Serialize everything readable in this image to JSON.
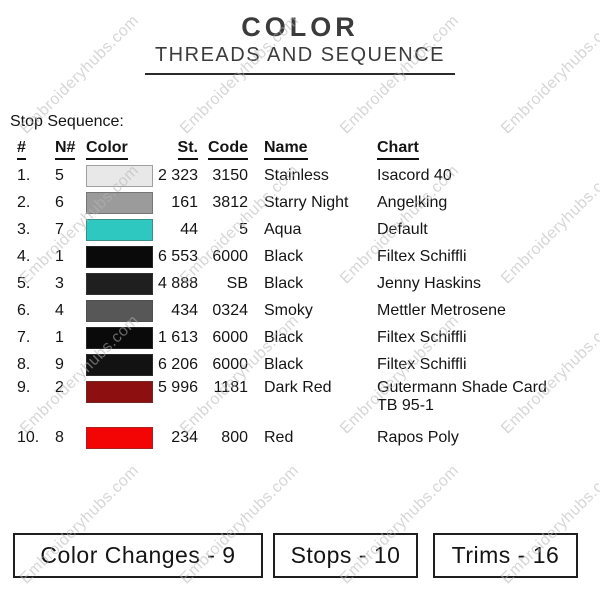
{
  "watermark": {
    "text": "Embroideryhubs.com"
  },
  "header": {
    "title": "COLOR",
    "subtitle": "THREADS AND SEQUENCE"
  },
  "stop_sequence_label": "Stop Sequence:",
  "table": {
    "columns": {
      "num": "#",
      "n": "N#",
      "color": "Color",
      "st": "St.",
      "code": "Code",
      "name": "Name",
      "chart": "Chart"
    },
    "rows": [
      {
        "num": "1.",
        "n": "5",
        "color": "#e8e8e8",
        "st": "2 323",
        "code": "3150",
        "name": "Stainless",
        "chart": "Isacord 40"
      },
      {
        "num": "2.",
        "n": "6",
        "color": "#9b9b9b",
        "st": "161",
        "code": "3812",
        "name": "Starry Night",
        "chart": "Angelking"
      },
      {
        "num": "3.",
        "n": "7",
        "color": "#2fc8c0",
        "st": "44",
        "code": "5",
        "name": "Aqua",
        "chart": "Default"
      },
      {
        "num": "4.",
        "n": "1",
        "color": "#0a0a0a",
        "st": "6 553",
        "code": "6000",
        "name": "Black",
        "chart": "Filtex Schiffli"
      },
      {
        "num": "5.",
        "n": "3",
        "color": "#1f1f1f",
        "st": "4 888",
        "code": "SB",
        "name": "Black",
        "chart": "Jenny Haskins"
      },
      {
        "num": "6.",
        "n": "4",
        "color": "#575757",
        "st": "434",
        "code": "0324",
        "name": "Smoky",
        "chart": "Mettler Metrosene"
      },
      {
        "num": "7.",
        "n": "1",
        "color": "#0a0a0a",
        "st": "1 613",
        "code": "6000",
        "name": "Black",
        "chart": "Filtex Schiffli"
      },
      {
        "num": "8.",
        "n": "9",
        "color": "#121212",
        "st": "6 206",
        "code": "6000",
        "name": "Black",
        "chart": "Filtex Schiffli"
      },
      {
        "num": "9.",
        "n": "2",
        "color": "#8e0f0f",
        "st": "5 996",
        "code": "1181",
        "name": "Dark Red",
        "chart": "Gutermann Shade Card TB 95-1"
      },
      {
        "num": "10.",
        "n": "8",
        "color": "#f40505",
        "st": "234",
        "code": "800",
        "name": "Red",
        "chart": "Rapos Poly"
      }
    ]
  },
  "footer": {
    "boxes": [
      {
        "label": "Color Changes - 9"
      },
      {
        "label": "Stops - 10"
      },
      {
        "label": "Trims - 16"
      }
    ]
  }
}
